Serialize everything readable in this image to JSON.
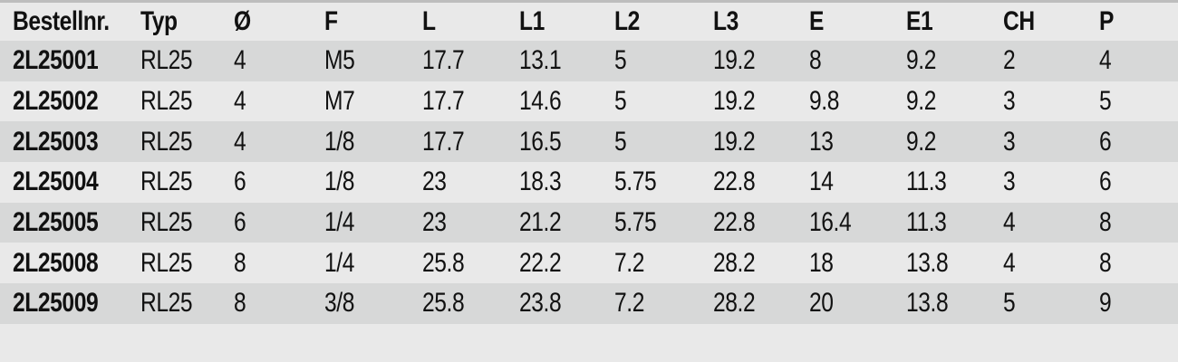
{
  "table": {
    "headers": [
      "Bestellnr.",
      "Typ",
      "Ø",
      "F",
      "L",
      "L1",
      "L2",
      "L3",
      "E",
      "E1",
      "CH",
      "P"
    ],
    "rows": [
      [
        "2L25001",
        "RL25",
        "4",
        "M5",
        "17.7",
        "13.1",
        "5",
        "19.2",
        "8",
        "9.2",
        "2",
        "4"
      ],
      [
        "2L25002",
        "RL25",
        "4",
        "M7",
        "17.7",
        "14.6",
        "5",
        "19.2",
        "9.8",
        "9.2",
        "3",
        "5"
      ],
      [
        "2L25003",
        "RL25",
        "4",
        "1/8",
        "17.7",
        "16.5",
        "5",
        "19.2",
        "13",
        "9.2",
        "3",
        "6"
      ],
      [
        "2L25004",
        "RL25",
        "6",
        "1/8",
        "23",
        "18.3",
        "5.75",
        "22.8",
        "14",
        "11.3",
        "3",
        "6"
      ],
      [
        "2L25005",
        "RL25",
        "6",
        "1/4",
        "23",
        "21.2",
        "5.75",
        "22.8",
        "16.4",
        "11.3",
        "4",
        "8"
      ],
      [
        "2L25008",
        "RL25",
        "8",
        "1/4",
        "25.8",
        "22.2",
        "7.2",
        "28.2",
        "18",
        "13.8",
        "4",
        "8"
      ],
      [
        "2L25009",
        "RL25",
        "8",
        "3/8",
        "25.8",
        "23.8",
        "7.2",
        "28.2",
        "20",
        "13.8",
        "5",
        "9"
      ]
    ]
  }
}
